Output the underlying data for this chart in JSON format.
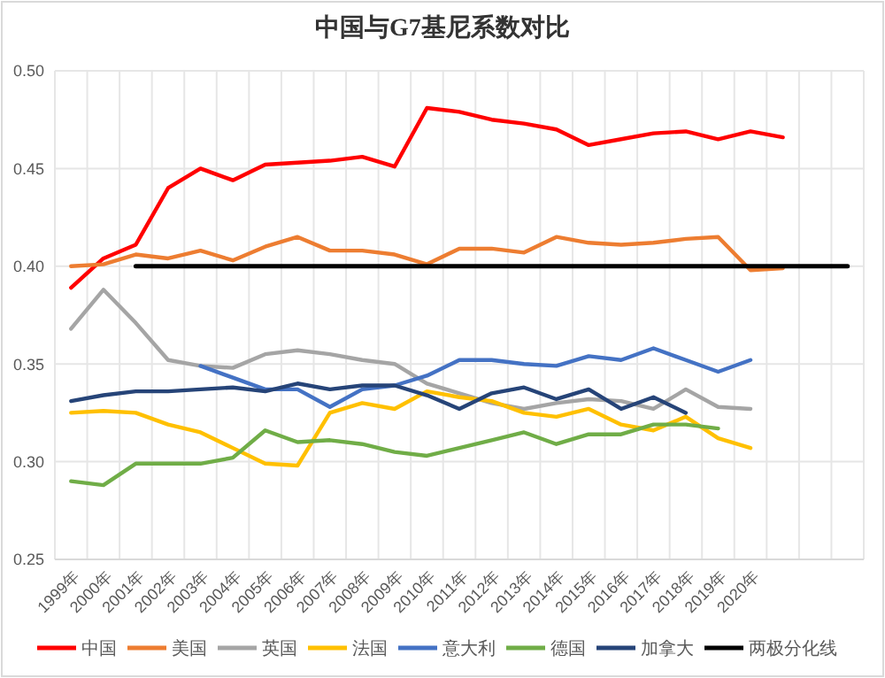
{
  "chart_data": {
    "type": "line",
    "title": "中国与G7基尼系数对比",
    "categories": [
      "1999年",
      "2000年",
      "2001年",
      "2002年",
      "2003年",
      "2004年",
      "2005年",
      "2006年",
      "2007年",
      "2008年",
      "2009年",
      "2010年",
      "2011年",
      "2012年",
      "2013年",
      "2014年",
      "2015年",
      "2016年",
      "2017年",
      "2018年",
      "2019年",
      "2020年",
      null,
      null,
      null
    ],
    "ylim": [
      0.25,
      0.5
    ],
    "yticks": [
      {
        "value": 0.25,
        "label": "0.25"
      },
      {
        "value": 0.3,
        "label": "0.30"
      },
      {
        "value": 0.35,
        "label": "0.35"
      },
      {
        "value": 0.4,
        "label": "0.40"
      },
      {
        "value": 0.45,
        "label": "0.45"
      },
      {
        "value": 0.5,
        "label": "0.50"
      }
    ],
    "grid": true,
    "legend": "bottom",
    "marker": "none",
    "line_style": "solid",
    "series": [
      {
        "name": "中国",
        "color": "#ff0000",
        "values": [
          0.389,
          0.404,
          0.411,
          0.44,
          0.45,
          0.444,
          0.452,
          0.453,
          0.454,
          0.456,
          0.451,
          0.481,
          0.479,
          0.475,
          0.473,
          0.47,
          0.462,
          0.465,
          0.468,
          0.469,
          0.465,
          0.469,
          0.466,
          null,
          null
        ]
      },
      {
        "name": "美国",
        "color": "#ed7d31",
        "values": [
          0.4,
          0.401,
          0.406,
          0.404,
          0.408,
          0.403,
          0.41,
          0.415,
          0.408,
          0.408,
          0.406,
          0.401,
          0.409,
          0.409,
          0.407,
          0.415,
          0.412,
          0.411,
          0.412,
          0.414,
          0.415,
          0.398,
          0.399,
          null,
          null
        ]
      },
      {
        "name": "英国",
        "color": "#a5a5a5",
        "values": [
          0.368,
          0.388,
          0.371,
          0.352,
          0.349,
          0.348,
          0.355,
          0.357,
          0.355,
          0.352,
          0.35,
          0.34,
          0.335,
          0.33,
          0.327,
          0.33,
          0.332,
          0.331,
          0.327,
          0.337,
          0.328,
          0.327,
          null,
          null,
          null
        ]
      },
      {
        "name": "法国",
        "color": "#ffc000",
        "values": [
          0.325,
          0.326,
          0.325,
          0.319,
          0.315,
          0.307,
          0.299,
          0.298,
          0.325,
          0.33,
          0.327,
          0.336,
          0.333,
          0.331,
          0.325,
          0.323,
          0.327,
          0.319,
          0.316,
          0.323,
          0.312,
          0.307,
          null,
          null,
          null
        ]
      },
      {
        "name": "意大利",
        "color": "#4472c4",
        "values": [
          null,
          null,
          null,
          null,
          0.349,
          0.343,
          0.337,
          0.337,
          0.328,
          0.337,
          0.339,
          0.344,
          0.352,
          0.352,
          0.35,
          0.349,
          0.354,
          0.352,
          0.358,
          0.352,
          0.346,
          0.352,
          null,
          null,
          null
        ]
      },
      {
        "name": "德国",
        "color": "#70ad47",
        "values": [
          0.29,
          0.288,
          0.299,
          0.299,
          0.299,
          0.302,
          0.316,
          0.31,
          0.311,
          0.309,
          0.305,
          0.303,
          0.307,
          0.311,
          0.315,
          0.309,
          0.314,
          0.314,
          0.319,
          0.319,
          0.317,
          null,
          null,
          null,
          null
        ]
      },
      {
        "name": "加拿大",
        "color": "#264478",
        "values": [
          0.331,
          0.334,
          0.336,
          0.336,
          0.337,
          0.338,
          0.336,
          0.34,
          0.337,
          0.339,
          0.339,
          0.334,
          0.327,
          0.335,
          0.338,
          0.332,
          0.337,
          0.327,
          0.333,
          0.325,
          null,
          null,
          null,
          null,
          null
        ]
      },
      {
        "name": "两极分化线",
        "color": "#000000",
        "values": [
          null,
          null,
          0.4,
          0.4,
          0.4,
          0.4,
          0.4,
          0.4,
          0.4,
          0.4,
          0.4,
          0.4,
          0.4,
          0.4,
          0.4,
          0.4,
          0.4,
          0.4,
          0.4,
          0.4,
          0.4,
          0.4,
          0.4,
          0.4,
          0.4
        ]
      }
    ]
  }
}
